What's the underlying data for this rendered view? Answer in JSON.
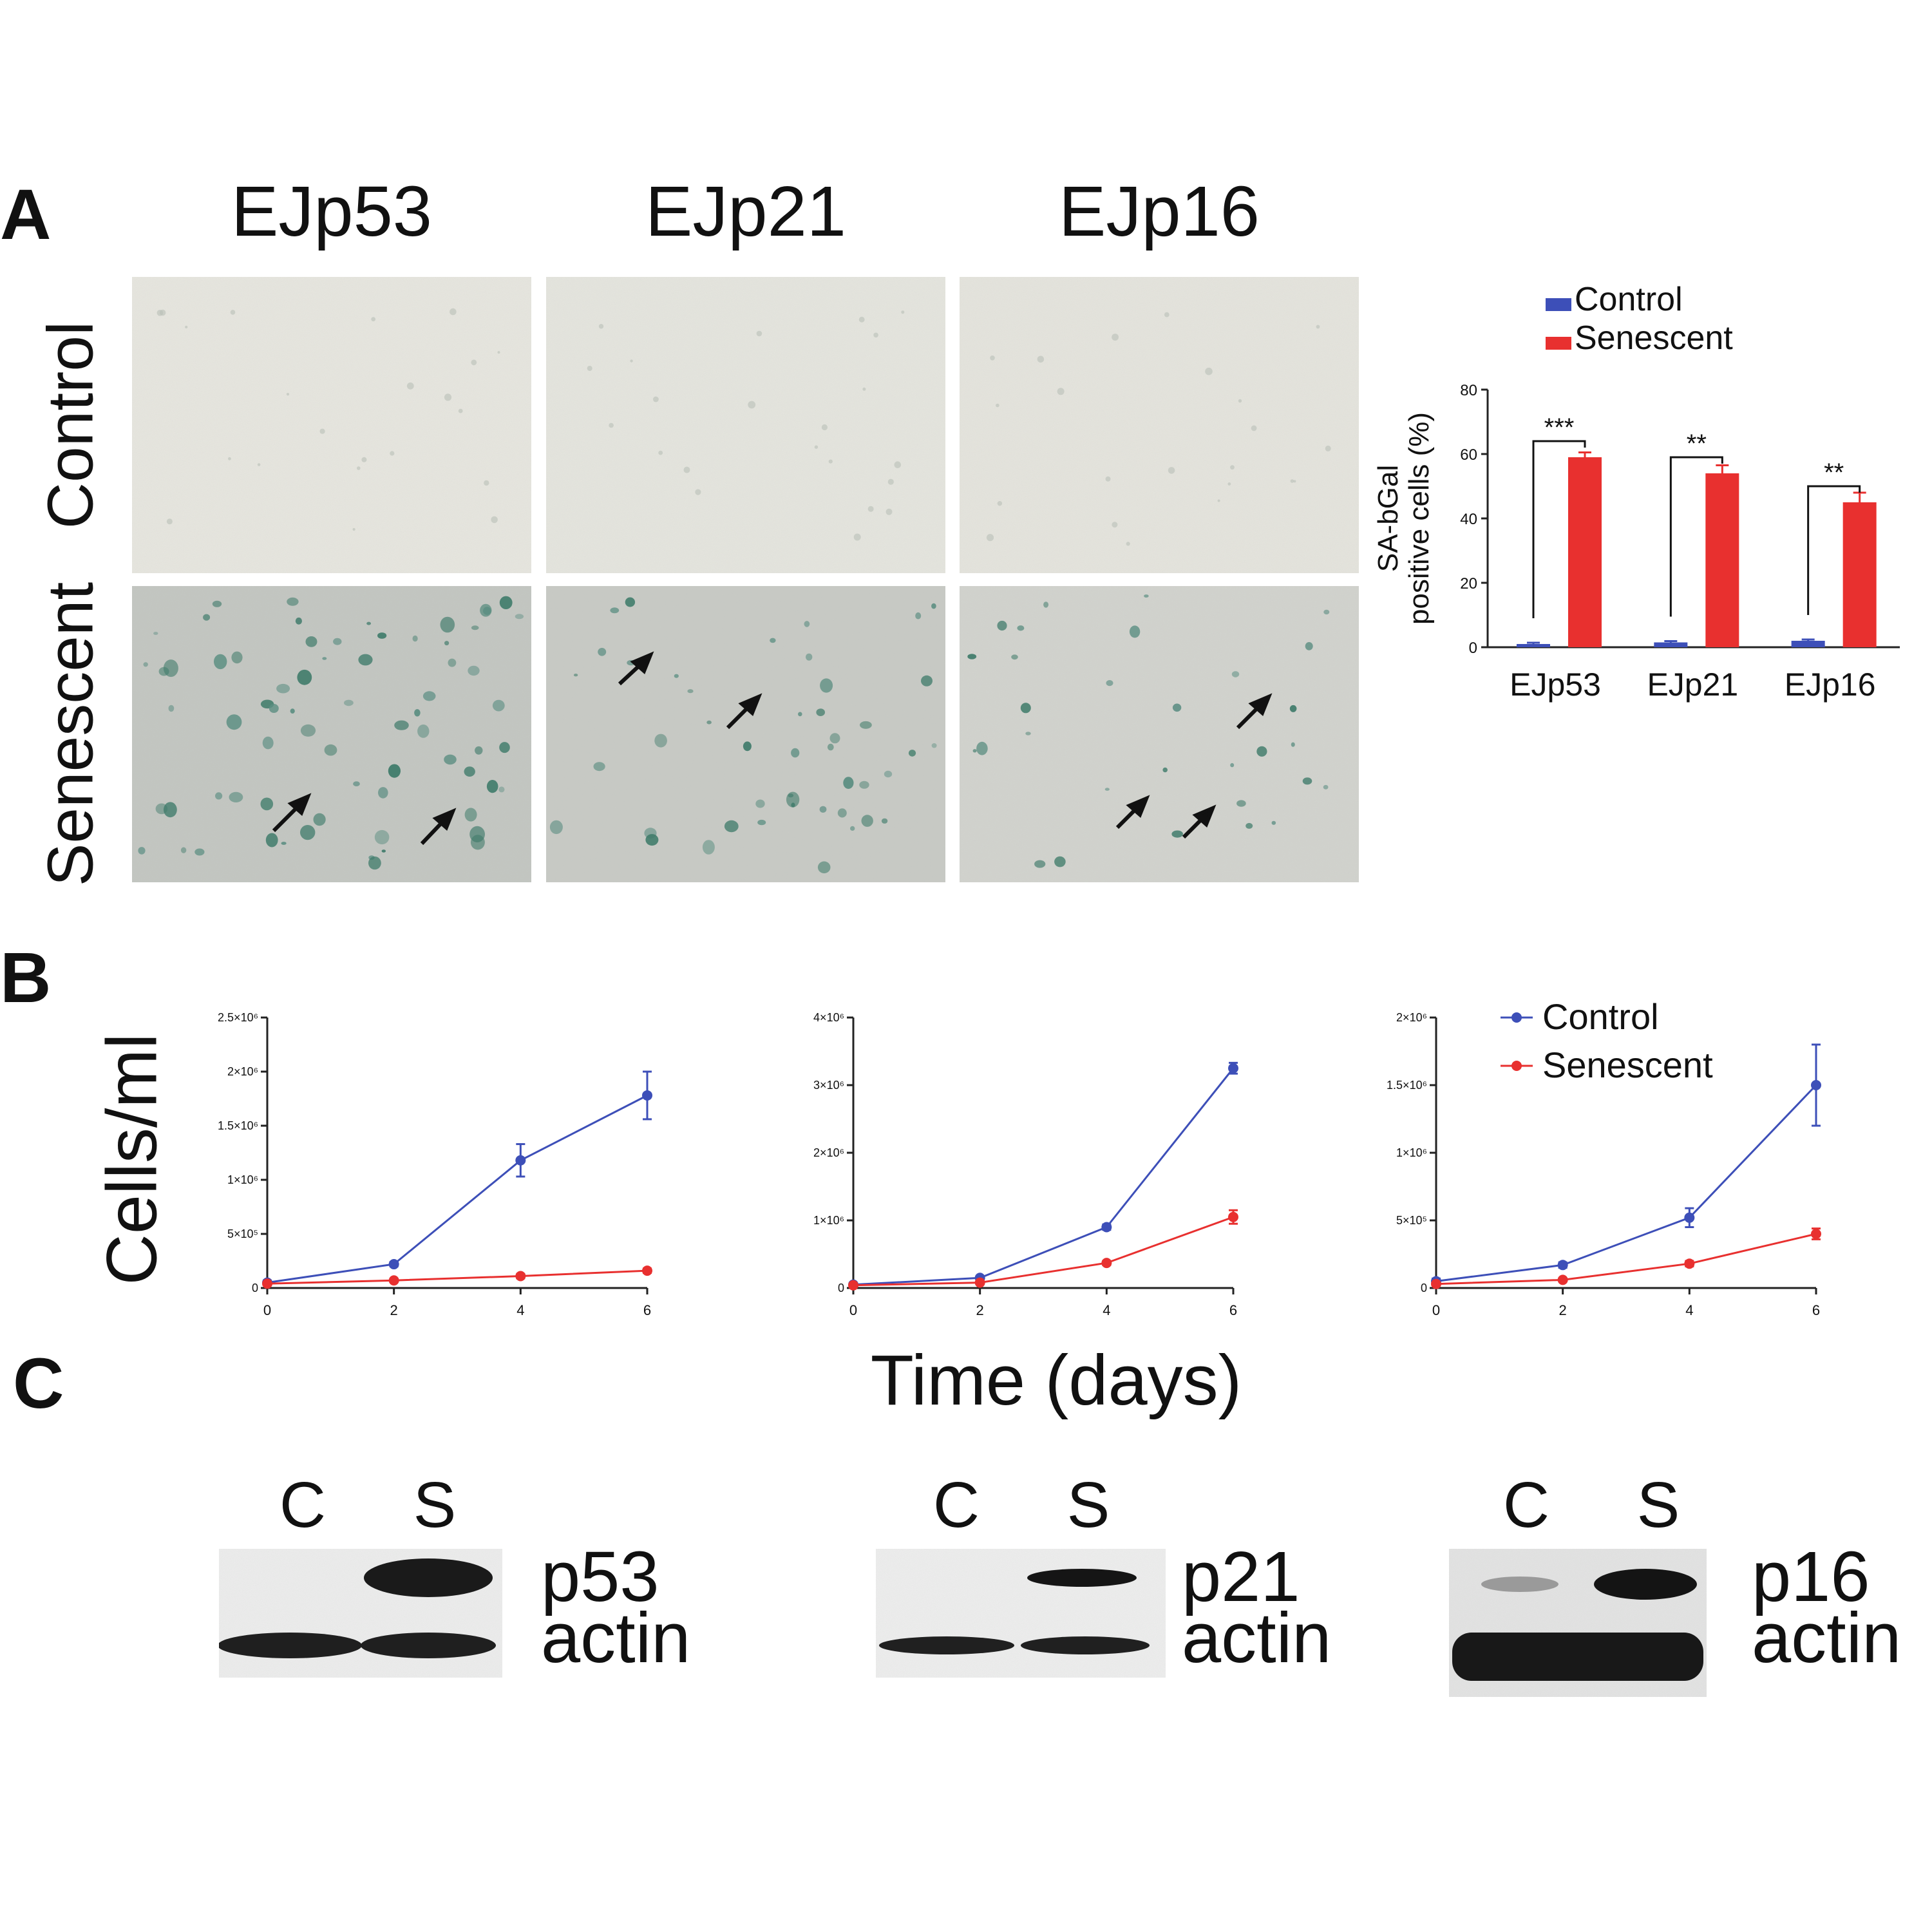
{
  "panel_a": {
    "label": "A",
    "cell_lines": [
      "EJp53",
      "EJp21",
      "EJp16"
    ],
    "row_labels": [
      "Control",
      "Senescent"
    ]
  },
  "panel_b": {
    "label": "B",
    "ylabel": "Cells/ml",
    "xlabel": "Time (days)"
  },
  "panel_c": {
    "label": "C",
    "blots": [
      {
        "lanes": [
          "C",
          "S"
        ],
        "protein": "p53",
        "loading": "actin"
      },
      {
        "lanes": [
          "C",
          "S"
        ],
        "protein": "p21",
        "loading": "actin"
      },
      {
        "lanes": [
          "C",
          "S"
        ],
        "protein": "p16",
        "loading": "actin"
      }
    ]
  },
  "colors": {
    "control": "#3d4fb8",
    "senescent": "#e8302f",
    "axis": "#222222"
  },
  "chart_data": [
    {
      "type": "bar",
      "ylabel": "SA-bGal positive cells (%)",
      "ylim": [
        0,
        80
      ],
      "yticks": [
        "0",
        "20",
        "40",
        "60",
        "80"
      ],
      "categories": [
        "EJp53",
        "EJp21",
        "EJp16"
      ],
      "series": [
        {
          "name": "Control",
          "values": [
            1,
            1.5,
            2
          ],
          "errors": [
            0.4,
            0.4,
            0.4
          ]
        },
        {
          "name": "Senescent",
          "values": [
            59,
            54,
            45
          ],
          "errors": [
            1.5,
            2.5,
            3
          ]
        }
      ],
      "significance": [
        "***",
        "**",
        "**"
      ],
      "legend": "top"
    },
    {
      "type": "line",
      "x": [
        0,
        2,
        4,
        6
      ],
      "ylim": [
        0,
        2500000
      ],
      "yticks": [
        "0",
        "5×10⁵",
        "1×10⁶",
        "1.5×10⁶",
        "2×10⁶",
        "2.5×10⁶"
      ],
      "xticks": [
        "0",
        "2",
        "4",
        "6"
      ],
      "series": [
        {
          "name": "Control",
          "values": [
            50000,
            220000,
            1180000,
            1780000
          ],
          "errors": [
            20000,
            20000,
            150000,
            220000
          ]
        },
        {
          "name": "Senescent",
          "values": [
            40000,
            70000,
            110000,
            160000
          ],
          "errors": [
            10000,
            10000,
            20000,
            20000
          ]
        }
      ]
    },
    {
      "type": "line",
      "x": [
        0,
        2,
        4,
        6
      ],
      "ylim": [
        0,
        4000000
      ],
      "yticks": [
        "0",
        "1×10⁶",
        "2×10⁶",
        "3×10⁶",
        "4×10⁶"
      ],
      "xticks": [
        "0",
        "2",
        "4",
        "6"
      ],
      "series": [
        {
          "name": "Control",
          "values": [
            50000,
            150000,
            900000,
            3250000
          ],
          "errors": [
            20000,
            20000,
            40000,
            80000
          ]
        },
        {
          "name": "Senescent",
          "values": [
            40000,
            80000,
            370000,
            1050000
          ],
          "errors": [
            10000,
            10000,
            30000,
            100000
          ]
        }
      ]
    },
    {
      "type": "line",
      "x": [
        0,
        2,
        4,
        6
      ],
      "ylim": [
        0,
        2000000
      ],
      "yticks": [
        "0",
        "5×10⁵",
        "1×10⁶",
        "1.5×10⁶",
        "2×10⁶"
      ],
      "xticks": [
        "0",
        "2",
        "4",
        "6"
      ],
      "series": [
        {
          "name": "Control",
          "values": [
            50000,
            170000,
            520000,
            1500000
          ],
          "errors": [
            20000,
            20000,
            70000,
            300000
          ]
        },
        {
          "name": "Senescent",
          "values": [
            30000,
            60000,
            180000,
            400000
          ],
          "errors": [
            10000,
            10000,
            20000,
            40000
          ]
        }
      ],
      "legend": "top-right"
    }
  ]
}
